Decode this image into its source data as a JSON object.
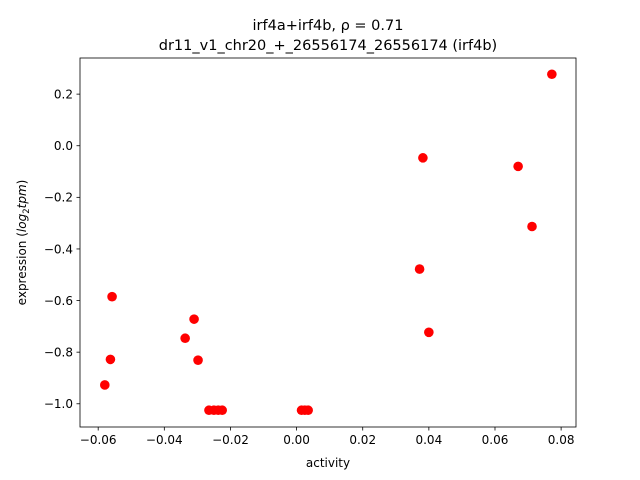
{
  "chart_data": {
    "type": "scatter",
    "title_line1": "irf4a+irf4b, ρ = 0.71",
    "title_line2": "dr11_v1_chr20_+_26556174_26556174 (irf4b)",
    "xlabel": "activity",
    "ylabel_prefix": "expression (",
    "ylabel_math": "log",
    "ylabel_sub": "2",
    "ylabel_math2": "tpm",
    "ylabel_suffix": ")",
    "xlim": [
      -0.0655,
      0.0845
    ],
    "ylim": [
      -1.09,
      0.34
    ],
    "x_ticks": [
      -0.06,
      -0.04,
      -0.02,
      0.0,
      0.02,
      0.04,
      0.06,
      0.08
    ],
    "x_tick_labels": [
      "−0.06",
      "−0.04",
      "−0.02",
      "0.00",
      "0.02",
      "0.04",
      "0.06",
      "0.08"
    ],
    "y_ticks": [
      0.2,
      0.0,
      -0.2,
      -0.4,
      -0.6,
      -0.8,
      -1.0
    ],
    "y_tick_labels": [
      "0.2",
      "0.0",
      "−0.2",
      "−0.4",
      "−0.6",
      "−0.8",
      "−1.0"
    ],
    "grid": false,
    "marker_color": "#ff0000",
    "points": [
      {
        "x": 0.0772,
        "y": 0.277
      },
      {
        "x": 0.0382,
        "y": -0.047
      },
      {
        "x": 0.067,
        "y": -0.08
      },
      {
        "x": 0.0712,
        "y": -0.313
      },
      {
        "x": 0.0372,
        "y": -0.478
      },
      {
        "x": 0.04,
        "y": -0.723
      },
      {
        "x": -0.0558,
        "y": -0.585
      },
      {
        "x": -0.0563,
        "y": -0.828
      },
      {
        "x": -0.058,
        "y": -0.927
      },
      {
        "x": -0.031,
        "y": -0.672
      },
      {
        "x": -0.0337,
        "y": -0.746
      },
      {
        "x": -0.0298,
        "y": -0.831
      },
      {
        "x": -0.0265,
        "y": -1.025
      },
      {
        "x": -0.025,
        "y": -1.025
      },
      {
        "x": -0.0237,
        "y": -1.025
      },
      {
        "x": -0.0225,
        "y": -1.025
      },
      {
        "x": 0.0015,
        "y": -1.025
      },
      {
        "x": 0.0025,
        "y": -1.025
      },
      {
        "x": 0.0035,
        "y": -1.025
      }
    ]
  }
}
